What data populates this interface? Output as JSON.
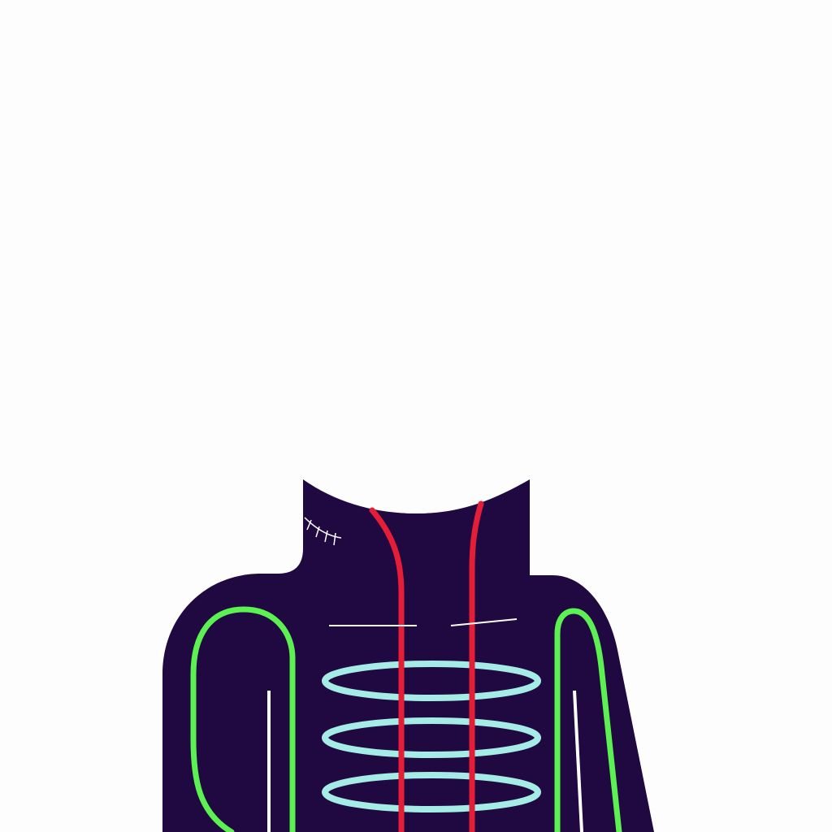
{
  "illustration": {
    "subject": "skeleton-torso",
    "colors": {
      "background": "#fdfdfd",
      "body": "#1f0940",
      "bones": "#5cf053",
      "vessels": "#e41e36",
      "ribs": "#a6ece6",
      "detail_lines": "#ffffff"
    }
  }
}
